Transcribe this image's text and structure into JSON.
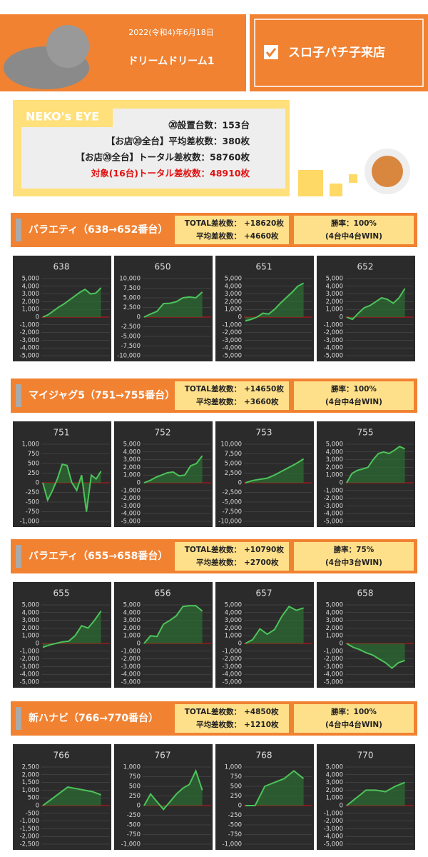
{
  "header": {
    "date": "2022(令和4)年6月18日",
    "title": "ドリームドリーム1",
    "visit": "スロ子パチ子来店"
  },
  "neko_eye": {
    "title": "NEKO's EYE",
    "lines": [
      "⑳設置台数：153台",
      "【お店⑳全台】平均差枚数：380枚",
      "【お店⑳全台】トータル差枚数：58760枚",
      "対象(16台)トータル差枚数：48910枚"
    ]
  },
  "sections": [
    {
      "title": "バラエティ（638→652番台）",
      "total_label": "TOTAL差枚数：",
      "total": "+18620枚",
      "average_label": "平均差枚数：",
      "average": "+4660枚",
      "win_rate": "勝率：100%",
      "win_count": "(4台中4台WIN)",
      "charts": [
        {
          "type": "line",
          "title": "638",
          "ylim": [
            -5000,
            5000
          ],
          "yticks": [
            {
              "value": -5000,
              "label": "-5,000"
            },
            {
              "value": -4000,
              "label": "-4,000"
            },
            {
              "value": -3000,
              "label": "-3,000"
            },
            {
              "value": -2000,
              "label": "-2,000"
            },
            {
              "value": -1000,
              "label": "-1,000"
            },
            0,
            {
              "value": 1000,
              "label": "1,000"
            },
            {
              "value": 2000,
              "label": "2,000"
            },
            {
              "value": 3000,
              "label": "3,000"
            },
            {
              "value": 4000,
              "label": "4,000"
            },
            {
              "value": 5000,
              "label": "5,000"
            }
          ],
          "values": [
            0,
            300,
            800,
            1300,
            1700,
            2200,
            2700,
            3200,
            3600,
            3000,
            3100,
            3800
          ]
        },
        {
          "type": "line",
          "title": "650",
          "ylim": [
            -10000,
            10000
          ],
          "yticks": [
            {
              "value": -10000,
              "label": "-10,000"
            },
            {
              "value": -7500,
              "label": "-7,500"
            },
            {
              "value": -5000,
              "label": "-5,000"
            },
            {
              "value": -2500,
              "label": "-2,500"
            },
            0,
            {
              "value": 2500,
              "label": "2,500"
            },
            {
              "value": 5000,
              "label": "5,000"
            },
            {
              "value": 7500,
              "label": "7,500"
            },
            {
              "value": 10000,
              "label": "10,000"
            }
          ],
          "values": [
            0,
            800,
            1500,
            3500,
            3600,
            4000,
            5000,
            5200,
            5000,
            6500
          ]
        },
        {
          "type": "line",
          "title": "651",
          "ylim": [
            -5000,
            5000
          ],
          "yticks": [
            {
              "value": -5000,
              "label": "-5,000"
            },
            {
              "value": -4000,
              "label": "-4,000"
            },
            {
              "value": -3000,
              "label": "-3,000"
            },
            {
              "value": -2000,
              "label": "-2,000"
            },
            {
              "value": -1000,
              "label": "-1,000"
            },
            0,
            {
              "value": 1000,
              "label": "1,000"
            },
            {
              "value": 2000,
              "label": "2,000"
            },
            {
              "value": 3000,
              "label": "3,000"
            },
            {
              "value": 4000,
              "label": "4,000"
            },
            {
              "value": 5000,
              "label": "5,000"
            }
          ],
          "values": [
            -500,
            -300,
            0,
            500,
            400,
            1000,
            1800,
            2500,
            3200,
            4000,
            4400
          ]
        },
        {
          "type": "line",
          "title": "652",
          "ylim": [
            -5000,
            5000
          ],
          "yticks": [
            {
              "value": -5000,
              "label": "-5,000"
            },
            {
              "value": -4000,
              "label": "-4,000"
            },
            {
              "value": -3000,
              "label": "-3,000"
            },
            {
              "value": -2000,
              "label": "-2,000"
            },
            {
              "value": -1000,
              "label": "-1,000"
            },
            0,
            {
              "value": 1000,
              "label": "1,000"
            },
            {
              "value": 2000,
              "label": "2,000"
            },
            {
              "value": 3000,
              "label": "3,000"
            },
            {
              "value": 4000,
              "label": "4,000"
            },
            {
              "value": 5000,
              "label": "5,000"
            }
          ],
          "values": [
            0,
            -300,
            500,
            1200,
            1500,
            2000,
            2500,
            2300,
            1800,
            2500,
            3700
          ]
        }
      ]
    },
    {
      "title": "マイジャグ5（751→755番台）",
      "total_label": "TOTAL差枚数：",
      "total": "+14650枚",
      "average_label": "平均差枚数：",
      "average": "+3660枚",
      "win_rate": "勝率：100%",
      "win_count": "(4台中4台WIN)",
      "charts": [
        {
          "type": "line",
          "title": "751",
          "ylim": [
            -1000,
            1000
          ],
          "yticks": [
            {
              "value": -1000,
              "label": "-1,000"
            },
            -750,
            -500,
            -250,
            0,
            250,
            500,
            750,
            {
              "value": 1000,
              "label": "1,000"
            }
          ],
          "values": [
            0,
            -450,
            -200,
            100,
            480,
            450,
            0,
            -200,
            200,
            -750,
            200,
            100,
            300
          ]
        },
        {
          "type": "line",
          "title": "752",
          "ylim": [
            -5000,
            5000
          ],
          "yticks": [
            {
              "value": -5000,
              "label": "-5,000"
            },
            {
              "value": -4000,
              "label": "-4,000"
            },
            {
              "value": -3000,
              "label": "-3,000"
            },
            {
              "value": -2000,
              "label": "-2,000"
            },
            {
              "value": -1000,
              "label": "-1,000"
            },
            0,
            {
              "value": 1000,
              "label": "1,000"
            },
            {
              "value": 2000,
              "label": "2,000"
            },
            {
              "value": 3000,
              "label": "3,000"
            },
            {
              "value": 4000,
              "label": "4,000"
            },
            {
              "value": 5000,
              "label": "5,000"
            }
          ],
          "values": [
            0,
            300,
            700,
            1000,
            1300,
            1400,
            900,
            1000,
            2200,
            2500,
            3500
          ]
        },
        {
          "type": "line",
          "title": "753",
          "ylim": [
            -10000,
            10000
          ],
          "yticks": [
            {
              "value": -10000,
              "label": "-10,000"
            },
            {
              "value": -7500,
              "label": "-7,500"
            },
            {
              "value": -5000,
              "label": "-5,000"
            },
            {
              "value": -2500,
              "label": "-2,500"
            },
            0,
            {
              "value": 2500,
              "label": "2,500"
            },
            {
              "value": 5000,
              "label": "5,000"
            },
            {
              "value": 7500,
              "label": "7,500"
            },
            {
              "value": 10000,
              "label": "10,000"
            }
          ],
          "values": [
            0,
            600,
            900,
            1200,
            2000,
            3000,
            4000,
            5000,
            6200
          ]
        },
        {
          "type": "line",
          "title": "755",
          "ylim": [
            -5000,
            5000
          ],
          "yticks": [
            {
              "value": -5000,
              "label": "-5,000"
            },
            {
              "value": -4000,
              "label": "-4,000"
            },
            {
              "value": -3000,
              "label": "-3,000"
            },
            {
              "value": -2000,
              "label": "-2,000"
            },
            {
              "value": -1000,
              "label": "-1,000"
            },
            0,
            {
              "value": 1000,
              "label": "1,000"
            },
            {
              "value": 2000,
              "label": "2,000"
            },
            {
              "value": 3000,
              "label": "3,000"
            },
            {
              "value": 4000,
              "label": "4,000"
            },
            {
              "value": 5000,
              "label": "5,000"
            }
          ],
          "values": [
            0,
            1200,
            1600,
            1800,
            2000,
            3000,
            3800,
            4000,
            3800,
            4200,
            4700,
            4400
          ]
        }
      ]
    },
    {
      "title": "バラエティ（655→658番台）",
      "total_label": "TOTAL差枚数：",
      "total": "+10790枚",
      "average_label": "平均差枚数：",
      "average": "+2700枚",
      "win_rate": "勝率：75%",
      "win_count": "(4台中3台WIN)",
      "charts": [
        {
          "type": "line",
          "title": "655",
          "ylim": [
            -5000,
            5000
          ],
          "yticks": [
            {
              "value": -5000,
              "label": "-5,000"
            },
            {
              "value": -4000,
              "label": "-4,000"
            },
            {
              "value": -3000,
              "label": "-3,000"
            },
            {
              "value": -2000,
              "label": "-2,000"
            },
            {
              "value": -1000,
              "label": "-1,000"
            },
            0,
            {
              "value": 1000,
              "label": "1,000"
            },
            {
              "value": 2000,
              "label": "2,000"
            },
            {
              "value": 3000,
              "label": "3,000"
            },
            {
              "value": 4000,
              "label": "4,000"
            },
            {
              "value": 5000,
              "label": "5,000"
            }
          ],
          "values": [
            -500,
            -200,
            0,
            200,
            300,
            1000,
            2300,
            2000,
            3000,
            4200
          ]
        },
        {
          "type": "line",
          "title": "656",
          "ylim": [
            -5000,
            5000
          ],
          "yticks": [
            {
              "value": -5000,
              "label": "-5,000"
            },
            {
              "value": -4000,
              "label": "-4,000"
            },
            {
              "value": -3000,
              "label": "-3,000"
            },
            {
              "value": -2000,
              "label": "-2,000"
            },
            {
              "value": -1000,
              "label": "-1,000"
            },
            0,
            {
              "value": 1000,
              "label": "1,000"
            },
            {
              "value": 2000,
              "label": "2,000"
            },
            {
              "value": 3000,
              "label": "3,000"
            },
            {
              "value": 4000,
              "label": "4,000"
            },
            {
              "value": 5000,
              "label": "5,000"
            }
          ],
          "values": [
            0,
            1000,
            900,
            2500,
            3000,
            3600,
            4800,
            4900,
            4900,
            4200
          ]
        },
        {
          "type": "line",
          "title": "657",
          "ylim": [
            -5000,
            5000
          ],
          "yticks": [
            {
              "value": -5000,
              "label": "-5,000"
            },
            {
              "value": -4000,
              "label": "-4,000"
            },
            {
              "value": -3000,
              "label": "-3,000"
            },
            {
              "value": -2000,
              "label": "-2,000"
            },
            {
              "value": -1000,
              "label": "-1,000"
            },
            0,
            {
              "value": 1000,
              "label": "1,000"
            },
            {
              "value": 2000,
              "label": "2,000"
            },
            {
              "value": 3000,
              "label": "3,000"
            },
            {
              "value": 4000,
              "label": "4,000"
            },
            {
              "value": 5000,
              "label": "5,000"
            }
          ],
          "values": [
            0,
            500,
            1900,
            1200,
            1800,
            3500,
            4800,
            4300,
            4600
          ]
        },
        {
          "type": "line",
          "title": "658",
          "ylim": [
            -5000,
            5000
          ],
          "yticks": [
            {
              "value": -5000,
              "label": "-5,000"
            },
            {
              "value": -4000,
              "label": "-4,000"
            },
            {
              "value": -3000,
              "label": "-3,000"
            },
            {
              "value": -2000,
              "label": "-2,000"
            },
            {
              "value": -1000,
              "label": "-1,000"
            },
            0,
            {
              "value": 1000,
              "label": "1,000"
            },
            {
              "value": 2000,
              "label": "2,000"
            },
            {
              "value": 3000,
              "label": "3,000"
            },
            {
              "value": 4000,
              "label": "4,000"
            },
            {
              "value": 5000,
              "label": "5,000"
            }
          ],
          "values": [
            0,
            -500,
            -800,
            -1200,
            -1500,
            -2000,
            -2500,
            -3200,
            -2500,
            -2200
          ]
        }
      ]
    },
    {
      "title": "新ハナビ（766→770番台）",
      "total_label": "TOTAL差枚数：",
      "total": "+4850枚",
      "average_label": "平均差枚数：",
      "average": "+1210枚",
      "win_rate": "勝率：100%",
      "win_count": "(4台中4台WIN)",
      "charts": [
        {
          "type": "line",
          "title": "766",
          "ylim": [
            -2500,
            2500
          ],
          "yticks": [
            {
              "value": -2500,
              "label": "-2,500"
            },
            {
              "value": -2000,
              "label": "-2,000"
            },
            {
              "value": -1500,
              "label": "-1,500"
            },
            {
              "value": -1000,
              "label": "-1,000"
            },
            -500,
            0,
            500,
            {
              "value": 1000,
              "label": "1,000"
            },
            {
              "value": 1500,
              "label": "1,500"
            },
            {
              "value": 2000,
              "label": "2,000"
            },
            {
              "value": 2500,
              "label": "2,500"
            }
          ],
          "values": [
            0,
            400,
            800,
            1200,
            1100,
            1000,
            900,
            700
          ]
        },
        {
          "type": "line",
          "title": "767",
          "ylim": [
            -1000,
            1000
          ],
          "yticks": [
            {
              "value": -1000,
              "label": "-1,000"
            },
            -750,
            -500,
            -250,
            0,
            250,
            500,
            750,
            {
              "value": 1000,
              "label": "1,000"
            }
          ],
          "values": [
            0,
            300,
            100,
            -100,
            100,
            300,
            450,
            550,
            900,
            400
          ]
        },
        {
          "type": "line",
          "title": "768",
          "ylim": [
            -1000,
            1000
          ],
          "yticks": [
            {
              "value": -1000,
              "label": "-1,000"
            },
            -750,
            -500,
            -250,
            0,
            250,
            500,
            750,
            {
              "value": 1000,
              "label": "1,000"
            }
          ],
          "values": [
            0,
            0,
            500,
            600,
            700,
            900,
            700
          ]
        },
        {
          "type": "line",
          "title": "770",
          "ylim": [
            -5000,
            5000
          ],
          "yticks": [
            {
              "value": -5000,
              "label": "-5,000"
            },
            {
              "value": -4000,
              "label": "-4,000"
            },
            {
              "value": -3000,
              "label": "-3,000"
            },
            {
              "value": -2000,
              "label": "-2,000"
            },
            {
              "value": -1000,
              "label": "-1,000"
            },
            0,
            {
              "value": 1000,
              "label": "1,000"
            },
            {
              "value": 2000,
              "label": "2,000"
            },
            {
              "value": 3000,
              "label": "3,000"
            },
            {
              "value": 4000,
              "label": "4,000"
            },
            {
              "value": 5000,
              "label": "5,000"
            }
          ],
          "values": [
            0,
            1000,
            2000,
            2000,
            1800,
            2500,
            3000
          ]
        }
      ]
    }
  ]
}
